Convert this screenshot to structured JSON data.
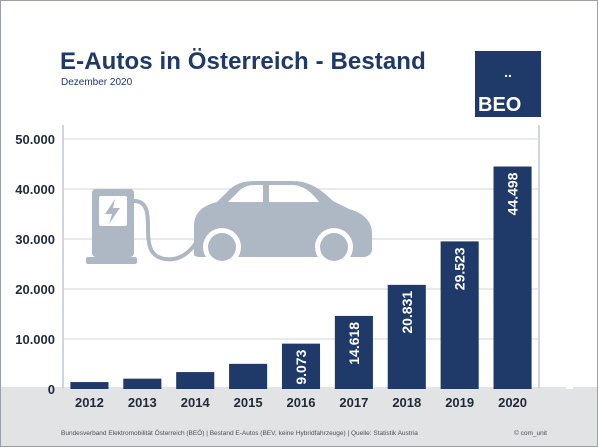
{
  "header": {
    "title": "E-Autos in Österreich - Bestand",
    "subtitle": "Dezember 2020"
  },
  "logo": {
    "dots": "..",
    "text": "BEO"
  },
  "footer": {
    "source": "Bundesverband Elektromobilität Österreich (BEÖ) | Bestand E-Autos (BEV, keine Hybridfahrzeuge) | Quelle: Statistik Austria",
    "copyright": "© com_unit"
  },
  "colors": {
    "bar": "#1f3a68",
    "title": "#1f3a68",
    "illustration": "#aeb7c4",
    "ground": "#e2e3e5",
    "grid": "#d2d6dc"
  },
  "icons": [
    "charging-station-icon",
    "car-icon",
    "tree-icon",
    "lightning-icon"
  ],
  "chart_data": {
    "type": "bar",
    "title": "E-Autos in Österreich - Bestand",
    "subtitle": "Dezember 2020",
    "xlabel": "",
    "ylabel": "",
    "categories": [
      "2012",
      "2013",
      "2014",
      "2015",
      "2016",
      "2017",
      "2018",
      "2019",
      "2020"
    ],
    "values": [
      1389,
      2070,
      3386,
      5032,
      9073,
      14618,
      20831,
      29523,
      44498
    ],
    "data_labels": [
      "",
      "",
      "",
      "",
      "9.073",
      "14.618",
      "20.831",
      "29.523",
      "44.498"
    ],
    "ylim": [
      0,
      50000
    ],
    "yticks": [
      0,
      10000,
      20000,
      30000,
      40000,
      50000
    ],
    "ytick_labels": [
      "0",
      "10.000",
      "20.000",
      "30.000",
      "40.000",
      "50.000"
    ],
    "grid": true,
    "legend": "none"
  }
}
